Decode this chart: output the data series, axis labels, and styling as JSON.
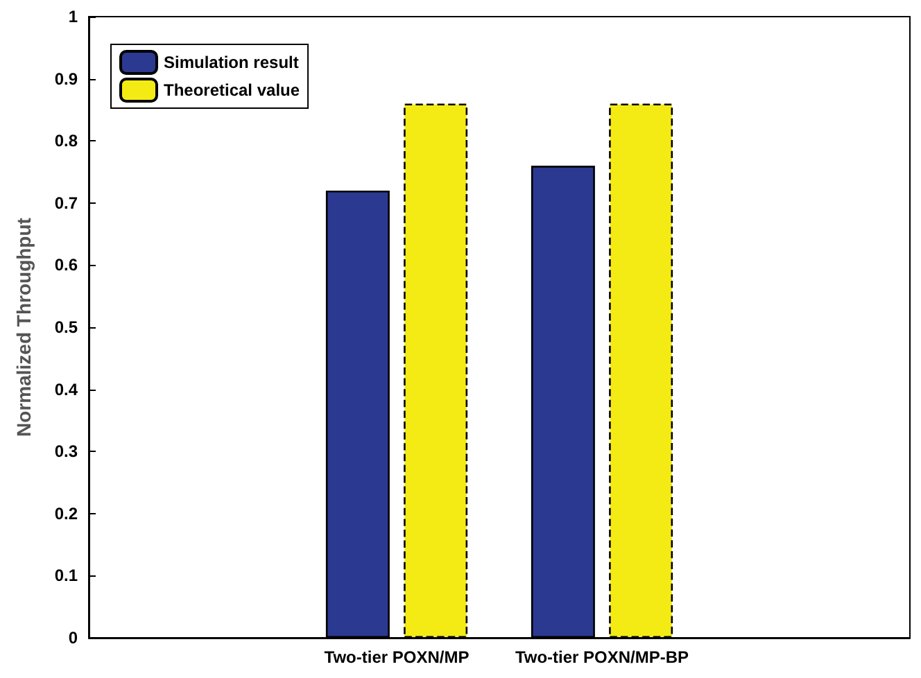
{
  "chart_data": {
    "type": "bar",
    "ylabel": "Normalized Throughput",
    "categories": [
      "Two-tier POXN/MP",
      "Two-tier POXN/MP-BP"
    ],
    "series": [
      {
        "name": "Simulation result",
        "color": "#2b3990",
        "values": [
          0.72,
          0.76
        ]
      },
      {
        "name": "Theoretical value",
        "color": "#f5eb14",
        "values": [
          0.86,
          0.86
        ],
        "line_style": "dashed"
      }
    ],
    "ylim": [
      0,
      1
    ],
    "yticks": [
      0,
      0.1,
      0.2,
      0.3,
      0.4,
      0.5,
      0.6,
      0.7,
      0.8,
      0.9,
      1
    ],
    "grid": false,
    "legend": "top left"
  }
}
